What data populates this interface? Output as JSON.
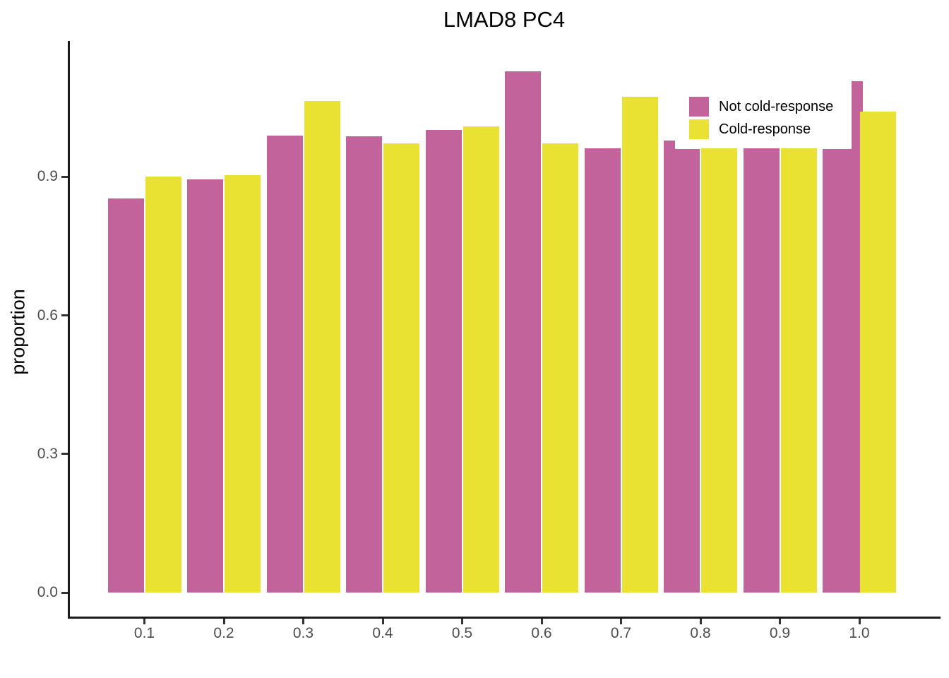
{
  "title": "LMAD8 PC4",
  "axes": {
    "y_label": "proportion",
    "y_tick_labels": [
      "0.0",
      "0.3",
      "0.6",
      "0.9"
    ],
    "x_tick_labels": [
      "0.1",
      "0.2",
      "0.3",
      "0.4",
      "0.5",
      "0.6",
      "0.7",
      "0.8",
      "0.9",
      "1.0"
    ]
  },
  "legend": {
    "items": [
      {
        "label": "Not cold-response",
        "color": "#C2649B"
      },
      {
        "label": "Cold-response",
        "color": "#E9E232"
      }
    ]
  },
  "colors": {
    "not_cold_response": "#C2649B",
    "cold_response": "#E9E232",
    "axis_line": "#1a1a1a",
    "tick_text": "#4d4d4d",
    "background": "#ffffff"
  },
  "chart_data": {
    "type": "bar",
    "title": "LMAD8 PC4",
    "xlabel": "",
    "ylabel": "proportion",
    "categories": [
      0.1,
      0.2,
      0.3,
      0.4,
      0.5,
      0.6,
      0.7,
      0.8,
      0.9,
      1.0
    ],
    "series": [
      {
        "name": "Not cold-response",
        "color": "#C2649B",
        "values": [
          0.853,
          0.894,
          0.989,
          0.988,
          1.002,
          1.128,
          0.962,
          0.96,
          0.962,
          0.96
        ]
      },
      {
        "name": "Cold-response",
        "color": "#E9E232",
        "values": [
          0.901,
          0.904,
          1.064,
          0.972,
          1.009,
          0.972,
          1.073,
          0.962,
          0.962,
          1.041
        ]
      }
    ],
    "overlay_bars": [
      {
        "series": "Not cold-response",
        "x": 0.8,
        "value": 0.979,
        "align": "left-edge",
        "note": "narrow overlapping bar visible as step at left edge of magenta bar"
      },
      {
        "series": "Not cold-response",
        "x": 1.0,
        "value": 1.107,
        "align": "right-edge",
        "note": "narrow overlapping bar visible as tall spike at right edge of magenta bar"
      }
    ],
    "ylim": [
      0,
      1.19
    ],
    "y_ticks": [
      0.0,
      0.3,
      0.6,
      0.9
    ],
    "grid": false,
    "legend_position": "top-right-inside"
  }
}
